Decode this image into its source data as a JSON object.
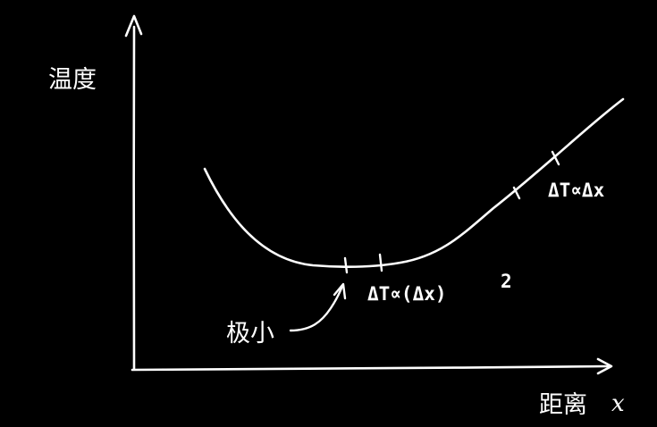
{
  "labels": {
    "y_axis": "温度",
    "x_axis": "距离",
    "x_variable": "x",
    "minimum": "极小",
    "near_min_relation_main": "ΔT∝(Δx)",
    "near_min_exponent": "2",
    "far_relation": "ΔT∝Δx"
  },
  "colors": {
    "background": "#000000",
    "chalk": "#ffffff"
  }
}
